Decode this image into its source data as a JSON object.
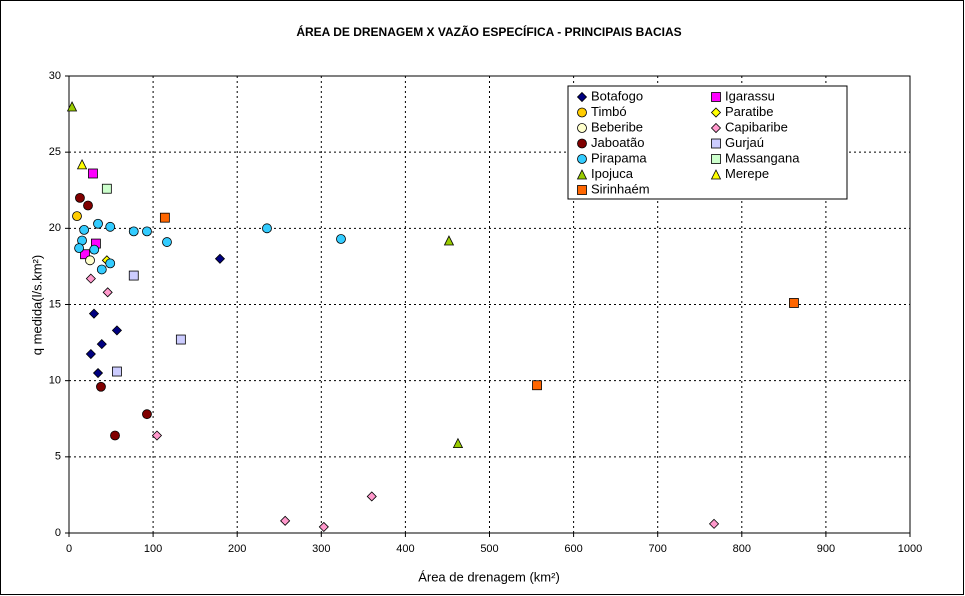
{
  "chart_data": {
    "type": "scatter",
    "title": "ÁREA DE DRENAGEM X  VAZÃO ESPECÍFICA - PRINCIPAIS BACIAS",
    "x_label": "Área de drenagem  (km²)",
    "y_label": "q medida(l/s.km²)",
    "xlim": [
      0,
      1000
    ],
    "xticks": [
      0,
      100,
      200,
      300,
      400,
      500,
      600,
      700,
      800,
      900,
      1000
    ],
    "ylim": [
      0,
      30
    ],
    "yticks": [
      0,
      5,
      10,
      15,
      20,
      25,
      30
    ],
    "grid": true,
    "legend": "upper right",
    "series": [
      {
        "name": "Botafogo",
        "color": "#000080",
        "marker": "diamond",
        "x": [
          179.5,
          29.7,
          57,
          39,
          26,
          34.5
        ],
        "values": [
          18.0,
          14.4,
          13.3,
          12.4,
          11.75,
          10.5
        ]
      },
      {
        "name": "Igarassu",
        "color": "#ff00ff",
        "marker": "square",
        "x": [
          28.5,
          32,
          19
        ],
        "values": [
          23.6,
          19.0,
          18.3
        ]
      },
      {
        "name": "Timbó",
        "color": "#ffcc00",
        "marker": "circle",
        "x": [
          9.5
        ],
        "values": [
          20.8
        ]
      },
      {
        "name": "Paratibe",
        "color": "#ffff00",
        "marker": "diamond",
        "x": [
          45
        ],
        "values": [
          17.9
        ]
      },
      {
        "name": "Beberibe",
        "color": "#ffffcc",
        "marker": "circle",
        "x": [
          25
        ],
        "values": [
          17.9
        ]
      },
      {
        "name": "Capibaribe",
        "color": "#ff99cc",
        "marker": "diamond",
        "x": [
          26,
          46,
          104.6,
          257,
          303,
          360,
          767
        ],
        "values": [
          16.7,
          15.8,
          6.4,
          0.8,
          0.4,
          2.4,
          0.6
        ]
      },
      {
        "name": "Jaboatão",
        "color": "#800000",
        "marker": "circle",
        "x": [
          13,
          22.6,
          38,
          54.7,
          92.7
        ],
        "values": [
          22.0,
          21.5,
          9.6,
          6.4,
          7.8
        ]
      },
      {
        "name": "Gurjaú",
        "color": "#ccccff",
        "marker": "square",
        "x": [
          77,
          133,
          57
        ],
        "values": [
          16.9,
          12.7,
          10.6
        ]
      },
      {
        "name": "Pirapama",
        "color": "#33ccff",
        "marker": "circle",
        "x": [
          18,
          15.5,
          12,
          30,
          34.5,
          49,
          39,
          49,
          77,
          92.7,
          116.5,
          235.4,
          323.4
        ],
        "values": [
          19.9,
          19.2,
          18.7,
          18.6,
          20.3,
          20.1,
          17.3,
          17.7,
          19.8,
          19.8,
          19.1,
          20.0,
          19.3
        ]
      },
      {
        "name": "Massangana",
        "color": "#ccffcc",
        "marker": "square",
        "x": [
          45
        ],
        "values": [
          22.6
        ]
      },
      {
        "name": "Ipojuca",
        "color": "#99cc00",
        "marker": "triangle",
        "x": [
          3.6,
          451.8,
          462.5
        ],
        "values": [
          28.0,
          19.2,
          5.9
        ]
      },
      {
        "name": "Merepe",
        "color": "#ffff00",
        "marker": "triangle",
        "x": [
          15.5
        ],
        "values": [
          24.2
        ]
      },
      {
        "name": "Sirinhaém",
        "color": "#ff6600",
        "marker": "square",
        "x": [
          114,
          556.5,
          862
        ],
        "values": [
          20.7,
          9.7,
          15.1
        ]
      }
    ]
  }
}
